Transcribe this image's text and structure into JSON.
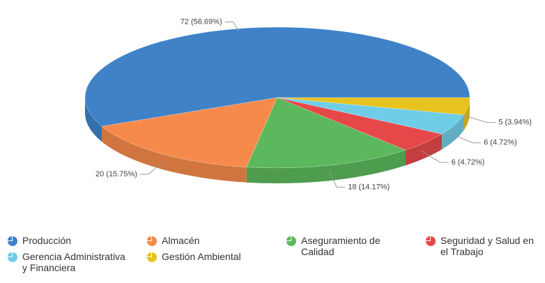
{
  "chart_data": {
    "type": "pie3d",
    "categories": [
      "Producción",
      "Almacén",
      "Aseguramiento de Calidad",
      "Seguridad y Salud en el Trabajo",
      "Gerencia Administrativa y Financiera",
      "Gestión Ambiental"
    ],
    "values": [
      72,
      20,
      18,
      6,
      6,
      5
    ],
    "value_labels": [
      "72 (56.69%)",
      "20 (15.75%)",
      "18 (14.17%)",
      "6 (4.72%)",
      "6 (4.72%)",
      "5 (3.94%)"
    ],
    "colors": [
      "#3f82c8",
      "#f58a4b",
      "#5cb85c",
      "#e6484a",
      "#70cde8",
      "#e6c31e"
    ]
  }
}
